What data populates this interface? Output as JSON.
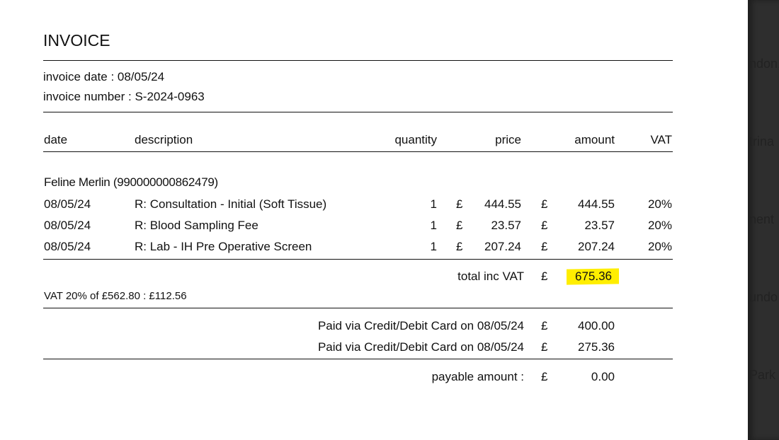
{
  "title": "INVOICE",
  "invoice_date": "invoice date : 08/05/24",
  "invoice_number": "invoice number : S-2024-0963",
  "columns": {
    "date": "date",
    "description": "description",
    "quantity": "quantity",
    "price": "price",
    "amount": "amount",
    "vat": "VAT"
  },
  "patient": "Feline Merlin (990000000862479)",
  "currency": "£",
  "rows": [
    {
      "date": "08/05/24",
      "description": "R: Consultation - Initial (Soft Tissue)",
      "quantity": "1",
      "price": "444.55",
      "amount": "444.55",
      "vat": "20%"
    },
    {
      "date": "08/05/24",
      "description": "R: Blood Sampling Fee",
      "quantity": "1",
      "price": "23.57",
      "amount": "23.57",
      "vat": "20%"
    },
    {
      "date": "08/05/24",
      "description": "R: Lab - IH Pre Operative Screen",
      "quantity": "1",
      "price": "207.24",
      "amount": "207.24",
      "vat": "20%"
    }
  ],
  "total": {
    "label": "total inc VAT",
    "value": "675.36",
    "highlight_color": "#ffee00"
  },
  "vat_summary": "VAT 20% of £562.80 : £112.56",
  "payments": [
    {
      "label": "Paid via Credit/Debit Card on 08/05/24",
      "value": "400.00"
    },
    {
      "label": "Paid via Credit/Debit Card on 08/05/24",
      "value": "275.36"
    }
  ],
  "payable": {
    "label": "payable amount :",
    "value": "0.00"
  },
  "side_panel_fragments": [
    "ndon,",
    "trina",
    "nent",
    "undo",
    "Park"
  ]
}
